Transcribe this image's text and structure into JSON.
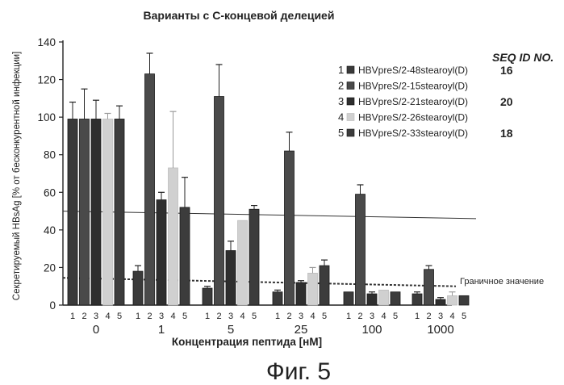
{
  "figure_caption": "Фиг. 5",
  "seq_header": "SEQ ID NO.",
  "threshold_label": "Граничное значение",
  "chart_data": {
    "type": "bar",
    "title": "Варианты с С-концевой делецией",
    "xlabel": "Концентрация пептида [нМ]",
    "ylabel": "Секретируемый HBsAg [% от бесконкурентной инфекции]",
    "ylim": [
      0,
      140
    ],
    "yticks": [
      0,
      20,
      40,
      60,
      80,
      100,
      120,
      140
    ],
    "categories": [
      "0",
      "1",
      "5",
      "25",
      "100",
      "1000"
    ],
    "bar_index_labels": [
      "1",
      "2",
      "3",
      "4",
      "5"
    ],
    "series": [
      {
        "name": "HBVpreS/2-48stearoyl(D)",
        "index": "1",
        "seq_id": "16",
        "color": "#3a3a3a",
        "values": [
          99,
          18,
          9,
          7,
          7,
          6
        ],
        "errors": [
          9,
          3,
          1,
          1,
          0,
          1
        ]
      },
      {
        "name": "HBVpreS/2-15stearoyl(D)",
        "index": "2",
        "seq_id": "",
        "color": "#4a4a4a",
        "values": [
          99,
          123,
          111,
          82,
          59,
          19
        ],
        "errors": [
          16,
          11,
          17,
          10,
          5,
          2
        ]
      },
      {
        "name": "HBVpreS/2-21stearoyl(D)",
        "index": "3",
        "seq_id": "20",
        "color": "#2e2e2e",
        "values": [
          99,
          56,
          29,
          12,
          6,
          3
        ],
        "errors": [
          10,
          4,
          5,
          1,
          1,
          1
        ]
      },
      {
        "name": "HBVpreS/2-26stearoyl(D)",
        "index": "4",
        "seq_id": "",
        "color": "#d0d0d0",
        "values": [
          99,
          73,
          45,
          17,
          8,
          5
        ],
        "errors": [
          3,
          30,
          0,
          3,
          0,
          2
        ]
      },
      {
        "name": "HBVpreS/2-33stearoyl(D)",
        "index": "5",
        "seq_id": "18",
        "color": "#3c3c3c",
        "values": [
          99,
          52,
          51,
          21,
          7,
          5
        ],
        "errors": [
          7,
          16,
          2,
          3,
          0,
          0
        ]
      }
    ],
    "reference_lines": [
      {
        "style": "solid",
        "from": 50,
        "to": 46
      },
      {
        "style": "dashed",
        "from": 14.5,
        "to": 10,
        "label": "Граничное значение"
      }
    ],
    "legend_position": "right"
  }
}
